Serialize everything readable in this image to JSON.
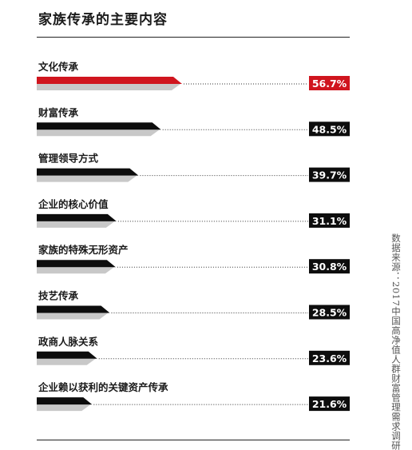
{
  "chart_data": {
    "type": "bar",
    "orientation": "horizontal",
    "title": "家族传承的主要内容",
    "categories": [
      "文化传承",
      "财富传承",
      "管理领导方式",
      "企业的核心价值",
      "家族的特殊无形资产",
      "技艺传承",
      "政商人脉关系",
      "企业赖以获利的关键资产传承"
    ],
    "values": [
      56.7,
      48.5,
      39.7,
      31.1,
      30.8,
      28.5,
      23.6,
      21.6
    ],
    "value_labels": [
      "56.7%",
      "48.5%",
      "39.7%",
      "31.1%",
      "30.8%",
      "28.5%",
      "23.6%",
      "21.6%"
    ],
    "unit": "%",
    "highlight_index": 0,
    "colors": {
      "highlight": "#d0151e",
      "bar": "#0d0d0d",
      "shadow": "#c8c8c8",
      "badge": "#0d0d0d",
      "highlight_badge": "#d0151e"
    },
    "grid": false,
    "legend": "none"
  },
  "source_note": "数据来源：2017中国高净值人群财富管理需求调研"
}
